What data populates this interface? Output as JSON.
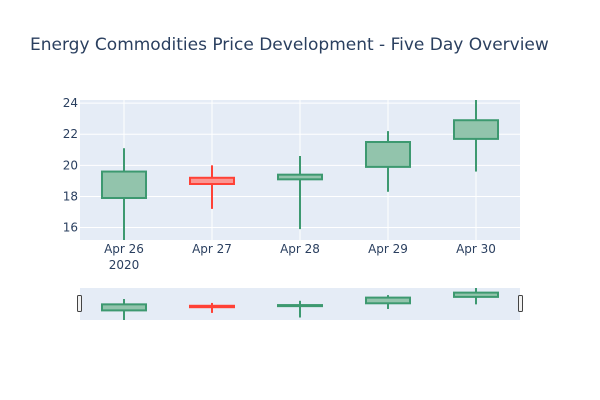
{
  "chart_data": {
    "type": "candlestick",
    "title": "Energy Commodities Price Development - Five Day Overview",
    "xlabel": "",
    "ylabel": "",
    "x_year_label": "2020",
    "ylim": [
      15.2,
      24.2
    ],
    "yticks": [
      "16",
      "18",
      "20",
      "22",
      "24"
    ],
    "grid": true,
    "legend": "none",
    "categories": [
      "Apr 26",
      "Apr 27",
      "Apr 28",
      "Apr 29",
      "Apr 30"
    ],
    "candles": [
      {
        "date": "Apr 26",
        "open": 17.9,
        "high": 21.1,
        "low": 15.2,
        "close": 19.6,
        "direction": "increasing"
      },
      {
        "date": "Apr 27",
        "open": 19.2,
        "high": 20.0,
        "low": 17.2,
        "close": 18.8,
        "direction": "decreasing"
      },
      {
        "date": "Apr 28",
        "open": 19.1,
        "high": 20.6,
        "low": 15.9,
        "close": 19.4,
        "direction": "increasing"
      },
      {
        "date": "Apr 29",
        "open": 19.9,
        "high": 22.2,
        "low": 18.3,
        "close": 21.5,
        "direction": "increasing"
      },
      {
        "date": "Apr 30",
        "open": 21.7,
        "high": 24.2,
        "low": 19.6,
        "close": 22.9,
        "direction": "increasing"
      }
    ],
    "rangeslider": true
  },
  "colors": {
    "increasing": "#3d9970",
    "increasing_fill": "#92c4ac",
    "decreasing": "#ff4136",
    "decreasing_fill": "#fb9692",
    "plot_bg": "#e5ecf6",
    "grid": "#ffffff",
    "text": "#2a3f5f"
  }
}
